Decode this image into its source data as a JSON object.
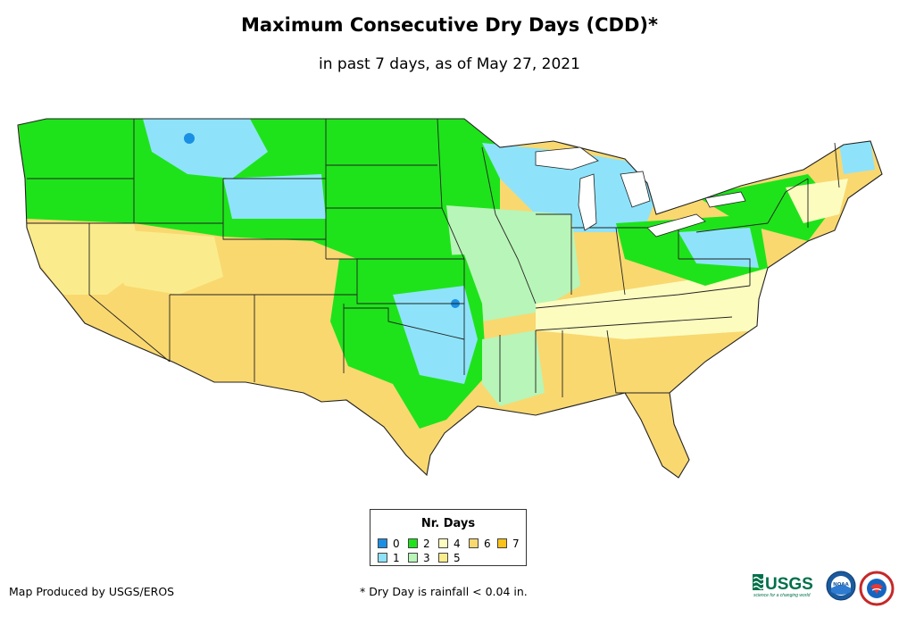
{
  "header": {
    "title": "Maximum Consecutive Dry Days (CDD)*",
    "subtitle": "in past 7 days, as of May 27, 2021"
  },
  "legend": {
    "title": "Nr. Days",
    "items": [
      {
        "label": "0",
        "color": "#1a8fe3"
      },
      {
        "label": "1",
        "color": "#8ee3fa"
      },
      {
        "label": "2",
        "color": "#1ee31a"
      },
      {
        "label": "3",
        "color": "#b8f5b8"
      },
      {
        "label": "4",
        "color": "#fcfcbf"
      },
      {
        "label": "5",
        "color": "#faec8c"
      },
      {
        "label": "6",
        "color": "#f9d870"
      },
      {
        "label": "7",
        "color": "#fbc21a"
      }
    ]
  },
  "footer": {
    "credit": "Map Produced by USGS/EROS",
    "note": "* Dry Day is rainfall < 0.04 in."
  },
  "logos": {
    "usgs_text": "USGS",
    "usgs_tagline": "science for a changing world",
    "noaa_text": "NOAA"
  }
}
